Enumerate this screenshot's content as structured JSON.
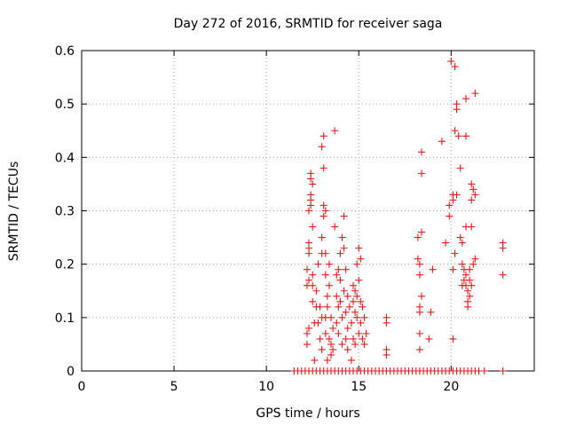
{
  "chart_data": {
    "type": "scatter",
    "title": "Day 272 of 2016, SRMTID for receiver saga",
    "xlabel": "GPS time / hours",
    "ylabel": "SRMTID / TECUs",
    "xlim": [
      0,
      24.5
    ],
    "ylim": [
      0,
      0.6
    ],
    "xticks": [
      0,
      5,
      10,
      15,
      20
    ],
    "xtick_labels": [
      "0",
      "5",
      "10",
      "15",
      "20"
    ],
    "yticks": [
      0,
      0.1,
      0.2,
      0.3,
      0.4,
      0.5,
      0.6
    ],
    "ytick_labels": [
      "0",
      "0.1",
      "0.2",
      "0.3",
      "0.4",
      "0.5",
      "0.6"
    ],
    "grid": true,
    "marker": "+",
    "color": "#e41a1c",
    "series": [
      {
        "name": "SRMTID",
        "points": [
          [
            11.5,
            0
          ],
          [
            11.7,
            0
          ],
          [
            11.9,
            0
          ],
          [
            12.1,
            0
          ],
          [
            12.3,
            0
          ],
          [
            12.5,
            0
          ],
          [
            12.7,
            0
          ],
          [
            12.9,
            0
          ],
          [
            13.1,
            0
          ],
          [
            13.3,
            0
          ],
          [
            13.5,
            0
          ],
          [
            13.7,
            0
          ],
          [
            13.9,
            0
          ],
          [
            14.1,
            0
          ],
          [
            14.3,
            0
          ],
          [
            14.5,
            0
          ],
          [
            14.7,
            0
          ],
          [
            14.9,
            0
          ],
          [
            15.1,
            0
          ],
          [
            15.3,
            0
          ],
          [
            15.5,
            0
          ],
          [
            15.7,
            0
          ],
          [
            15.9,
            0
          ],
          [
            16.1,
            0
          ],
          [
            16.3,
            0
          ],
          [
            16.5,
            0
          ],
          [
            16.7,
            0
          ],
          [
            16.9,
            0
          ],
          [
            17.1,
            0
          ],
          [
            17.3,
            0
          ],
          [
            17.5,
            0
          ],
          [
            17.7,
            0
          ],
          [
            17.9,
            0
          ],
          [
            18.1,
            0
          ],
          [
            18.3,
            0
          ],
          [
            18.5,
            0
          ],
          [
            18.7,
            0
          ],
          [
            18.9,
            0
          ],
          [
            19.1,
            0
          ],
          [
            19.3,
            0
          ],
          [
            19.5,
            0
          ],
          [
            19.7,
            0
          ],
          [
            19.9,
            0
          ],
          [
            20.1,
            0
          ],
          [
            20.3,
            0
          ],
          [
            20.5,
            0
          ],
          [
            20.7,
            0
          ],
          [
            20.9,
            0
          ],
          [
            21.1,
            0
          ],
          [
            21.3,
            0
          ],
          [
            21.5,
            0
          ],
          [
            21.8,
            0
          ],
          [
            22.8,
            0
          ],
          [
            12.2,
            0.05
          ],
          [
            12.2,
            0.07
          ],
          [
            12.3,
            0.08
          ],
          [
            12.2,
            0.16
          ],
          [
            12.3,
            0.17
          ],
          [
            12.2,
            0.19
          ],
          [
            12.3,
            0.22
          ],
          [
            12.3,
            0.23
          ],
          [
            12.3,
            0.24
          ],
          [
            12.3,
            0.3
          ],
          [
            12.4,
            0.32
          ],
          [
            12.4,
            0.33
          ],
          [
            12.4,
            0.36
          ],
          [
            12.4,
            0.37
          ],
          [
            12.5,
            0.35
          ],
          [
            12.4,
            0.31
          ],
          [
            12.5,
            0.27
          ],
          [
            12.5,
            0.18
          ],
          [
            12.5,
            0.16
          ],
          [
            12.5,
            0.13
          ],
          [
            12.6,
            0.02
          ],
          [
            12.6,
            0.09
          ],
          [
            12.7,
            0.12
          ],
          [
            12.7,
            0.15
          ],
          [
            12.8,
            0.2
          ],
          [
            12.8,
            0.09
          ],
          [
            12.9,
            0.12
          ],
          [
            12.9,
            0.06
          ],
          [
            13.0,
            0.25
          ],
          [
            13.0,
            0.22
          ],
          [
            13.0,
            0.1
          ],
          [
            13.0,
            0.04
          ],
          [
            13.1,
            0.29
          ],
          [
            13.1,
            0.31
          ],
          [
            13.1,
            0.38
          ],
          [
            13.0,
            0.42
          ],
          [
            13.1,
            0.44
          ],
          [
            13.2,
            0.3
          ],
          [
            13.2,
            0.22
          ],
          [
            13.2,
            0.18
          ],
          [
            13.2,
            0.1
          ],
          [
            13.2,
            0.07
          ],
          [
            13.3,
            0.14
          ],
          [
            13.3,
            0.12
          ],
          [
            13.3,
            0.02
          ],
          [
            13.4,
            0.2
          ],
          [
            13.4,
            0.16
          ],
          [
            13.4,
            0.06
          ],
          [
            13.5,
            0.1
          ],
          [
            13.5,
            0.05
          ],
          [
            13.5,
            0.03
          ],
          [
            13.6,
            0.08
          ],
          [
            13.6,
            0.04
          ],
          [
            13.7,
            0.45
          ],
          [
            13.7,
            0.27
          ],
          [
            13.8,
            0.18
          ],
          [
            13.8,
            0.14
          ],
          [
            13.8,
            0.09
          ],
          [
            13.9,
            0.19
          ],
          [
            13.9,
            0.12
          ],
          [
            13.9,
            0.07
          ],
          [
            14.0,
            0.22
          ],
          [
            14.0,
            0.17
          ],
          [
            14.0,
            0.13
          ],
          [
            14.1,
            0.25
          ],
          [
            14.1,
            0.1
          ],
          [
            14.1,
            0.05
          ],
          [
            14.2,
            0.29
          ],
          [
            14.2,
            0.23
          ],
          [
            14.2,
            0.15
          ],
          [
            14.3,
            0.19
          ],
          [
            14.3,
            0.11
          ],
          [
            14.3,
            0.06
          ],
          [
            14.4,
            0.14
          ],
          [
            14.4,
            0.08
          ],
          [
            14.4,
            0.04
          ],
          [
            14.5,
            0.12
          ],
          [
            14.6,
            0.09
          ],
          [
            14.6,
            0.02
          ],
          [
            14.7,
            0.16
          ],
          [
            14.7,
            0.13
          ],
          [
            14.7,
            0.06
          ],
          [
            14.8,
            0.15
          ],
          [
            14.8,
            0.11
          ],
          [
            14.8,
            0.05
          ],
          [
            14.9,
            0.2
          ],
          [
            14.9,
            0.14
          ],
          [
            14.9,
            0.1
          ],
          [
            15.0,
            0.23
          ],
          [
            15.0,
            0.17
          ],
          [
            15.0,
            0.07
          ],
          [
            15.1,
            0.21
          ],
          [
            15.1,
            0.13
          ],
          [
            15.1,
            0.09
          ],
          [
            15.2,
            0.12
          ],
          [
            15.2,
            0.06
          ],
          [
            15.3,
            0.1
          ],
          [
            15.3,
            0.05
          ],
          [
            15.4,
            0.07
          ],
          [
            16.5,
            0.1
          ],
          [
            16.5,
            0.09
          ],
          [
            16.5,
            0.04
          ],
          [
            16.5,
            0.03
          ],
          [
            18.2,
            0.25
          ],
          [
            18.2,
            0.21
          ],
          [
            18.3,
            0.2
          ],
          [
            18.3,
            0.18
          ],
          [
            18.3,
            0.12
          ],
          [
            18.3,
            0.11
          ],
          [
            18.3,
            0.07
          ],
          [
            18.3,
            0.04
          ],
          [
            18.4,
            0.41
          ],
          [
            18.4,
            0.37
          ],
          [
            18.4,
            0.26
          ],
          [
            18.4,
            0.14
          ],
          [
            18.8,
            0.06
          ],
          [
            18.9,
            0.11
          ],
          [
            19.0,
            0.19
          ],
          [
            19.5,
            0.43
          ],
          [
            19.7,
            0.24
          ],
          [
            19.9,
            0.29
          ],
          [
            19.9,
            0.31
          ],
          [
            20.0,
            0.58
          ],
          [
            20.1,
            0.33
          ],
          [
            20.1,
            0.32
          ],
          [
            20.1,
            0.19
          ],
          [
            20.1,
            0.06
          ],
          [
            20.2,
            0.57
          ],
          [
            20.2,
            0.45
          ],
          [
            20.2,
            0.22
          ],
          [
            20.3,
            0.5
          ],
          [
            20.3,
            0.49
          ],
          [
            20.3,
            0.33
          ],
          [
            20.4,
            0.44
          ],
          [
            20.5,
            0.38
          ],
          [
            20.5,
            0.25
          ],
          [
            20.6,
            0.24
          ],
          [
            20.6,
            0.2
          ],
          [
            20.6,
            0.16
          ],
          [
            20.7,
            0.19
          ],
          [
            20.7,
            0.17
          ],
          [
            20.8,
            0.51
          ],
          [
            20.8,
            0.44
          ],
          [
            20.8,
            0.27
          ],
          [
            20.8,
            0.18
          ],
          [
            20.8,
            0.16
          ],
          [
            20.9,
            0.15
          ],
          [
            20.9,
            0.13
          ],
          [
            20.9,
            0.12
          ],
          [
            21.0,
            0.19
          ],
          [
            21.0,
            0.17
          ],
          [
            21.0,
            0.14
          ],
          [
            21.1,
            0.35
          ],
          [
            21.1,
            0.32
          ],
          [
            21.1,
            0.27
          ],
          [
            21.1,
            0.16
          ],
          [
            21.2,
            0.34
          ],
          [
            21.2,
            0.2
          ],
          [
            21.3,
            0.52
          ],
          [
            21.3,
            0.33
          ],
          [
            21.3,
            0.21
          ],
          [
            22.8,
            0.24
          ],
          [
            22.8,
            0.23
          ],
          [
            22.8,
            0.18
          ]
        ]
      }
    ]
  }
}
